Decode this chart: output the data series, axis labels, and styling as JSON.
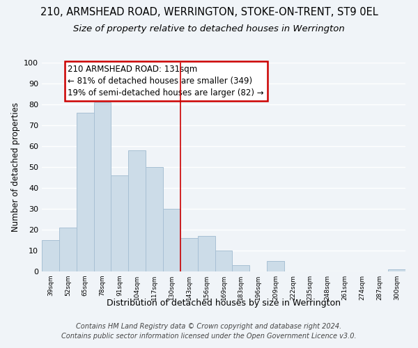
{
  "title": "210, ARMSHEAD ROAD, WERRINGTON, STOKE-ON-TRENT, ST9 0EL",
  "subtitle": "Size of property relative to detached houses in Werrington",
  "xlabel": "Distribution of detached houses by size in Werrington",
  "ylabel": "Number of detached properties",
  "bar_labels": [
    "39sqm",
    "52sqm",
    "65sqm",
    "78sqm",
    "91sqm",
    "104sqm",
    "117sqm",
    "130sqm",
    "143sqm",
    "156sqm",
    "169sqm",
    "183sqm",
    "196sqm",
    "209sqm",
    "222sqm",
    "235sqm",
    "248sqm",
    "261sqm",
    "274sqm",
    "287sqm",
    "300sqm"
  ],
  "bar_values": [
    15,
    21,
    76,
    81,
    46,
    58,
    50,
    30,
    16,
    17,
    10,
    3,
    0,
    5,
    0,
    0,
    0,
    0,
    0,
    0,
    1
  ],
  "bar_color": "#ccdce8",
  "bar_edge_color": "#a8c0d4",
  "vline_x": 7.5,
  "vline_color": "#cc0000",
  "annotation_line1": "210 ARMSHEAD ROAD: 131sqm",
  "annotation_line2": "← 81% of detached houses are smaller (349)",
  "annotation_line3": "19% of semi-detached houses are larger (82) →",
  "annotation_box_color": "#ffffff",
  "annotation_box_edge": "#cc0000",
  "ylim": [
    0,
    100
  ],
  "yticks": [
    0,
    10,
    20,
    30,
    40,
    50,
    60,
    70,
    80,
    90,
    100
  ],
  "footer1": "Contains HM Land Registry data © Crown copyright and database right 2024.",
  "footer2": "Contains public sector information licensed under the Open Government Licence v3.0.",
  "bg_color": "#f0f4f8",
  "grid_color": "#ffffff",
  "title_fontsize": 10.5,
  "subtitle_fontsize": 9.5,
  "xlabel_fontsize": 9,
  "ylabel_fontsize": 8.5,
  "annotation_fontsize": 8.5,
  "footer_fontsize": 7
}
